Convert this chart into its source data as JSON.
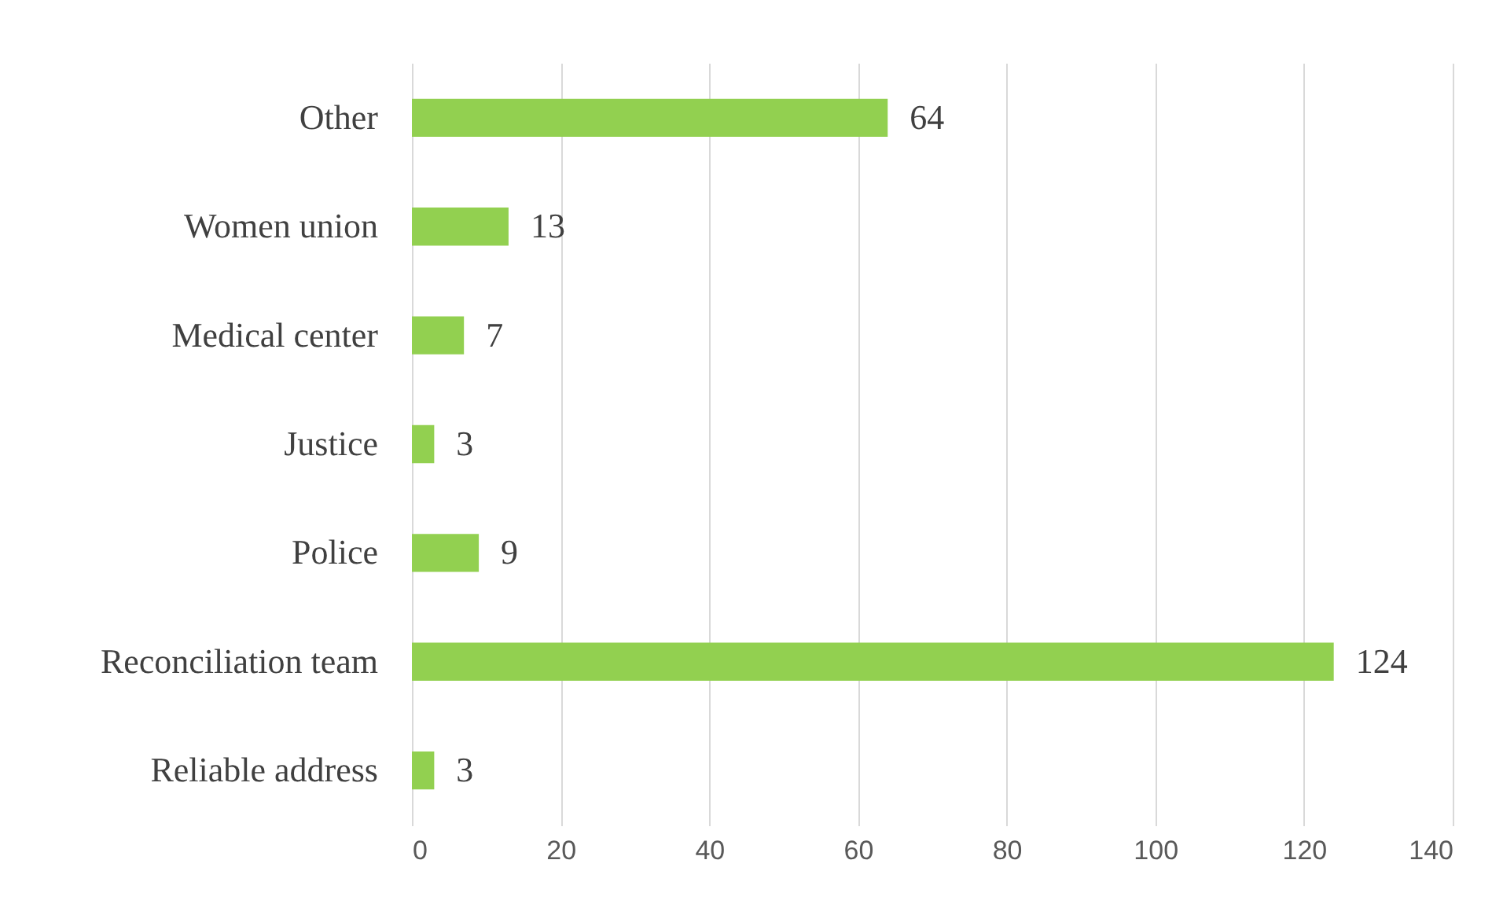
{
  "chart_data": {
    "type": "bar",
    "orientation": "horizontal",
    "categories": [
      "Other",
      "Women union",
      "Medical center",
      "Justice",
      "Police",
      "Reconciliation team",
      "Reliable address"
    ],
    "values": [
      64,
      13,
      7,
      3,
      9,
      124,
      3
    ],
    "color": "#92d050",
    "xlim": [
      0,
      140
    ],
    "xticks": [
      0,
      20,
      40,
      60,
      80,
      100,
      120,
      140
    ],
    "grid": "x",
    "data_labels": true
  }
}
